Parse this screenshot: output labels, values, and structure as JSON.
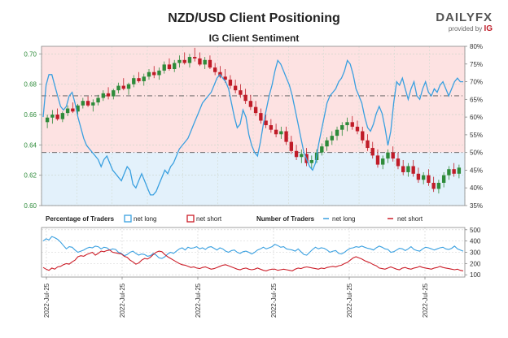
{
  "header": {
    "title": "NZD/USD Client Positioning",
    "subtitle": "IG Client Sentiment",
    "brand_logo": "DAILYFX",
    "brand_provided_by": "provided by",
    "brand_ig": "IG"
  },
  "colors": {
    "long": "#3aa0e0",
    "short": "#cc1f2a",
    "bull": "#2e8b3a",
    "bear": "#c01c28",
    "top_zone": "#fde2e2",
    "bottom_zone": "#e3f1fb",
    "axis_left_text": "#2e8b3a",
    "axis_text": "#333333"
  },
  "chart_data": [
    {
      "type": "candlestick+line",
      "name": "price-and-percentage",
      "y_left_label_ticks": [
        "0.70",
        "0.68",
        "0.66",
        "0.64",
        "0.62",
        "0.60"
      ],
      "y_left_values": [
        0.7,
        0.68,
        0.66,
        0.64,
        0.62,
        0.6
      ],
      "ylim_left": [
        0.6,
        0.705
      ],
      "y_right_label_ticks": [
        "80%",
        "75%",
        "70%",
        "65%",
        "60%",
        "55%",
        "50%",
        "45%",
        "40%",
        "35%"
      ],
      "y_right_values": [
        80,
        75,
        70,
        65,
        60,
        55,
        50,
        45,
        40,
        35
      ],
      "ylim_right": [
        35,
        80
      ],
      "reference_lines_pct": [
        66,
        50
      ],
      "zone_split_pct": 50,
      "grid": true,
      "long_pct": [
        60,
        69,
        72,
        72,
        69,
        66,
        63,
        62,
        63,
        66,
        67,
        64,
        60,
        57,
        54,
        52,
        51,
        50,
        49,
        48,
        46,
        48,
        49,
        47,
        45,
        44,
        43,
        42,
        44,
        46,
        45,
        41,
        40,
        42,
        44,
        42,
        40,
        38,
        38,
        39,
        41,
        43,
        45,
        44,
        46,
        47,
        49,
        51,
        52,
        53,
        54,
        56,
        58,
        60,
        62,
        64,
        65,
        66,
        67,
        69,
        71,
        72,
        71,
        70,
        68,
        64,
        60,
        57,
        58,
        62,
        60,
        55,
        52,
        50,
        49,
        53,
        58,
        62,
        66,
        69,
        73,
        76,
        75,
        73,
        71,
        69,
        66,
        62,
        58,
        54,
        50,
        48,
        46,
        45,
        47,
        52,
        56,
        60,
        64,
        66,
        67,
        68,
        70,
        71,
        73,
        76,
        75,
        72,
        68,
        66,
        64,
        60,
        57,
        56,
        58,
        61,
        63,
        61,
        57,
        52,
        56,
        64,
        70,
        69,
        71,
        68,
        65,
        68,
        70,
        66,
        65,
        68,
        70,
        67,
        66,
        68,
        67,
        69,
        70,
        68,
        66,
        68,
        70,
        71,
        70,
        70
      ],
      "candles": [
        [
          0.655,
          0.66,
          0.651,
          0.658
        ],
        [
          0.658,
          0.663,
          0.654,
          0.66
        ],
        [
          0.66,
          0.664,
          0.656,
          0.657
        ],
        [
          0.657,
          0.662,
          0.655,
          0.661
        ],
        [
          0.661,
          0.666,
          0.659,
          0.664
        ],
        [
          0.664,
          0.668,
          0.661,
          0.662
        ],
        [
          0.662,
          0.667,
          0.66,
          0.666
        ],
        [
          0.666,
          0.671,
          0.664,
          0.669
        ],
        [
          0.669,
          0.672,
          0.665,
          0.666
        ],
        [
          0.666,
          0.67,
          0.662,
          0.668
        ],
        [
          0.668,
          0.673,
          0.666,
          0.671
        ],
        [
          0.671,
          0.676,
          0.669,
          0.674
        ],
        [
          0.674,
          0.678,
          0.67,
          0.672
        ],
        [
          0.672,
          0.677,
          0.67,
          0.676
        ],
        [
          0.676,
          0.681,
          0.674,
          0.679
        ],
        [
          0.679,
          0.684,
          0.676,
          0.677
        ],
        [
          0.677,
          0.681,
          0.673,
          0.68
        ],
        [
          0.68,
          0.686,
          0.678,
          0.684
        ],
        [
          0.684,
          0.688,
          0.681,
          0.682
        ],
        [
          0.682,
          0.687,
          0.679,
          0.685
        ],
        [
          0.685,
          0.69,
          0.683,
          0.688
        ],
        [
          0.688,
          0.692,
          0.684,
          0.686
        ],
        [
          0.686,
          0.691,
          0.683,
          0.689
        ],
        [
          0.689,
          0.695,
          0.687,
          0.693
        ],
        [
          0.693,
          0.697,
          0.689,
          0.69
        ],
        [
          0.69,
          0.696,
          0.688,
          0.694
        ],
        [
          0.694,
          0.699,
          0.691,
          0.696
        ],
        [
          0.696,
          0.701,
          0.693,
          0.694
        ],
        [
          0.694,
          0.7,
          0.691,
          0.698
        ],
        [
          0.698,
          0.704,
          0.695,
          0.697
        ],
        [
          0.697,
          0.701,
          0.692,
          0.693
        ],
        [
          0.693,
          0.698,
          0.69,
          0.696
        ],
        [
          0.696,
          0.699,
          0.69,
          0.691
        ],
        [
          0.691,
          0.694,
          0.686,
          0.688
        ],
        [
          0.688,
          0.692,
          0.684,
          0.685
        ],
        [
          0.685,
          0.69,
          0.681,
          0.683
        ],
        [
          0.683,
          0.686,
          0.677,
          0.679
        ],
        [
          0.679,
          0.683,
          0.674,
          0.676
        ],
        [
          0.676,
          0.68,
          0.671,
          0.673
        ],
        [
          0.673,
          0.677,
          0.667,
          0.669
        ],
        [
          0.669,
          0.673,
          0.663,
          0.665
        ],
        [
          0.665,
          0.669,
          0.659,
          0.661
        ],
        [
          0.661,
          0.664,
          0.654,
          0.656
        ],
        [
          0.656,
          0.66,
          0.651,
          0.653
        ],
        [
          0.653,
          0.657,
          0.648,
          0.65
        ],
        [
          0.65,
          0.654,
          0.645,
          0.647
        ],
        [
          0.647,
          0.652,
          0.644,
          0.649
        ],
        [
          0.649,
          0.652,
          0.64,
          0.642
        ],
        [
          0.642,
          0.646,
          0.634,
          0.636
        ],
        [
          0.636,
          0.64,
          0.63,
          0.632
        ],
        [
          0.632,
          0.637,
          0.628,
          0.634
        ],
        [
          0.634,
          0.638,
          0.626,
          0.628
        ],
        [
          0.628,
          0.633,
          0.624,
          0.63
        ],
        [
          0.63,
          0.637,
          0.628,
          0.635
        ],
        [
          0.635,
          0.641,
          0.633,
          0.639
        ],
        [
          0.639,
          0.645,
          0.636,
          0.643
        ],
        [
          0.643,
          0.649,
          0.64,
          0.646
        ],
        [
          0.646,
          0.652,
          0.643,
          0.65
        ],
        [
          0.65,
          0.655,
          0.646,
          0.653
        ],
        [
          0.653,
          0.658,
          0.649,
          0.655
        ],
        [
          0.655,
          0.659,
          0.65,
          0.652
        ],
        [
          0.652,
          0.656,
          0.647,
          0.649
        ],
        [
          0.649,
          0.652,
          0.641,
          0.643
        ],
        [
          0.643,
          0.647,
          0.636,
          0.638
        ],
        [
          0.638,
          0.642,
          0.631,
          0.633
        ],
        [
          0.633,
          0.637,
          0.625,
          0.627
        ],
        [
          0.627,
          0.633,
          0.624,
          0.631
        ],
        [
          0.631,
          0.637,
          0.628,
          0.635
        ],
        [
          0.635,
          0.639,
          0.629,
          0.631
        ],
        [
          0.631,
          0.635,
          0.624,
          0.626
        ],
        [
          0.626,
          0.63,
          0.62,
          0.622
        ],
        [
          0.622,
          0.628,
          0.619,
          0.626
        ],
        [
          0.626,
          0.63,
          0.619,
          0.621
        ],
        [
          0.621,
          0.625,
          0.615,
          0.617
        ],
        [
          0.617,
          0.622,
          0.614,
          0.62
        ],
        [
          0.62,
          0.624,
          0.613,
          0.615
        ],
        [
          0.615,
          0.619,
          0.609,
          0.611
        ],
        [
          0.611,
          0.617,
          0.608,
          0.615
        ],
        [
          0.615,
          0.622,
          0.612,
          0.62
        ],
        [
          0.62,
          0.626,
          0.617,
          0.624
        ],
        [
          0.624,
          0.628,
          0.619,
          0.621
        ],
        [
          0.621,
          0.627,
          0.618,
          0.625
        ]
      ]
    },
    {
      "type": "line",
      "name": "number-of-traders",
      "y_label_ticks": [
        "500",
        "400",
        "300",
        "200",
        "100"
      ],
      "y_values": [
        500,
        400,
        300,
        200,
        100
      ],
      "ylim": [
        80,
        520
      ],
      "x_tick_labels": [
        "2022-Jul-25",
        "2022-Jul-25",
        "2022-Jul-25",
        "2022-Jul-25",
        "2022-Jul-25",
        "2022-Jul-25"
      ],
      "series": [
        {
          "name": "net long",
          "values": [
            400,
            420,
            410,
            440,
            430,
            415,
            390,
            360,
            330,
            350,
            345,
            320,
            300,
            310,
            320,
            335,
            345,
            340,
            355,
            350,
            330,
            345,
            340,
            320,
            330,
            325,
            300,
            290,
            270,
            280,
            300,
            310,
            290,
            275,
            285,
            280,
            265,
            270,
            290,
            275,
            250,
            245,
            260,
            285,
            300,
            290,
            310,
            330,
            340,
            320,
            345,
            335,
            340,
            350,
            330,
            340,
            325,
            345,
            350,
            335,
            320,
            340,
            330,
            310,
            300,
            315,
            320,
            300,
            290,
            305,
            310,
            300,
            285,
            300,
            320,
            330,
            345,
            330,
            340,
            350,
            370,
            360,
            345,
            350,
            330,
            325,
            320,
            310,
            330,
            305,
            280,
            275,
            300,
            325,
            345,
            330,
            340,
            335,
            320,
            300,
            310,
            315,
            290,
            285,
            300,
            320,
            335,
            340,
            350,
            345,
            355,
            345,
            335,
            330,
            320,
            340,
            355,
            345,
            330,
            325,
            300,
            305,
            320,
            335,
            330,
            315,
            330,
            350,
            325,
            315,
            310,
            330,
            345,
            340,
            330,
            320,
            330,
            340,
            345,
            330,
            325,
            335,
            355,
            330,
            320,
            310
          ]
        },
        {
          "name": "net short",
          "values": [
            165,
            150,
            140,
            160,
            150,
            170,
            175,
            190,
            200,
            195,
            215,
            230,
            260,
            270,
            265,
            280,
            290,
            300,
            275,
            290,
            310,
            305,
            315,
            320,
            300,
            295,
            290,
            285,
            265,
            255,
            230,
            215,
            195,
            205,
            230,
            245,
            240,
            255,
            280,
            300,
            310,
            305,
            280,
            260,
            245,
            230,
            215,
            200,
            190,
            185,
            175,
            165,
            170,
            160,
            155,
            165,
            170,
            160,
            150,
            155,
            165,
            175,
            185,
            190,
            180,
            170,
            160,
            150,
            145,
            155,
            160,
            150,
            145,
            150,
            160,
            150,
            140,
            135,
            145,
            150,
            150,
            140,
            145,
            150,
            145,
            140,
            135,
            150,
            160,
            155,
            165,
            170,
            165,
            160,
            155,
            150,
            160,
            155,
            165,
            170,
            175,
            170,
            180,
            185,
            200,
            210,
            230,
            250,
            260,
            250,
            240,
            225,
            215,
            205,
            190,
            180,
            160,
            155,
            150,
            160,
            170,
            160,
            150,
            145,
            160,
            165,
            155,
            150,
            160,
            165,
            175,
            165,
            160,
            155,
            150,
            160,
            165,
            175,
            165,
            160,
            155,
            150,
            145,
            150,
            140,
            135
          ]
        }
      ]
    }
  ],
  "legend": {
    "percentage_label": "Percentage of Traders",
    "net_long": "net long",
    "net_short": "net short",
    "number_label": "Number of Traders",
    "num_net_long": "net long",
    "num_net_short": "net short"
  }
}
